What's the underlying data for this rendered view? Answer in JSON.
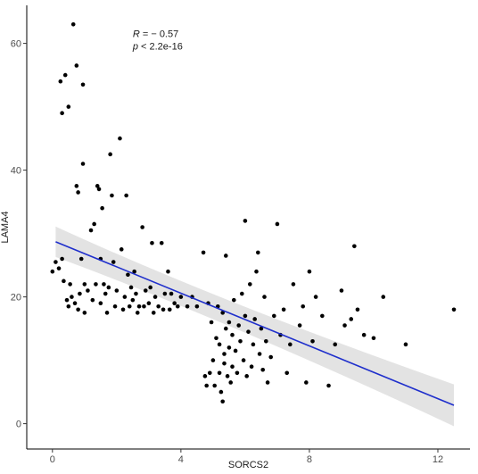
{
  "chart_data": {
    "type": "scatter",
    "xlabel": "SORCS2",
    "ylabel": "LAMA4",
    "xlim": [
      -0.8,
      13.0
    ],
    "ylim": [
      -4.0,
      66.0
    ],
    "x_ticks": [
      0,
      4,
      8,
      12
    ],
    "y_ticks": [
      0,
      20,
      40,
      60
    ],
    "x_tick_labels": [
      "0",
      "4",
      "8",
      "12"
    ],
    "y_tick_labels": [
      "0",
      "20",
      "40",
      "60"
    ],
    "grid": false,
    "annotation": {
      "r_symbol": "R",
      "r_value": " = − 0.57",
      "p_symbol": "p",
      "p_value": " < 2.2e-16",
      "x": 2.5,
      "y_r": 61.0,
      "y_p": 59.0
    },
    "colors": {
      "points": "#000000",
      "fit_line": "#1f2fcc",
      "ci_band": "#d9d9d9"
    },
    "fit": {
      "x": [
        0.1,
        12.5
      ],
      "y": [
        28.7,
        2.9
      ],
      "ci_lower": [
        26.3,
        -0.4
      ],
      "ci_upper": [
        31.1,
        6.2
      ],
      "ci_mid": {
        "x": 5.3,
        "lower": 16.6,
        "upper": 19.0
      }
    },
    "points": [
      [
        0.0,
        24.0
      ],
      [
        0.1,
        25.5
      ],
      [
        0.2,
        24.5
      ],
      [
        0.25,
        54.0
      ],
      [
        0.3,
        26.0
      ],
      [
        0.3,
        49.0
      ],
      [
        0.35,
        22.5
      ],
      [
        0.4,
        55.0
      ],
      [
        0.45,
        19.5
      ],
      [
        0.5,
        50.0
      ],
      [
        0.5,
        18.5
      ],
      [
        0.55,
        22.0
      ],
      [
        0.6,
        20.0
      ],
      [
        0.65,
        63.0
      ],
      [
        0.7,
        19.0
      ],
      [
        0.75,
        56.5
      ],
      [
        0.75,
        37.5
      ],
      [
        0.8,
        36.5
      ],
      [
        0.8,
        18.0
      ],
      [
        0.85,
        20.5
      ],
      [
        0.9,
        26.0
      ],
      [
        0.95,
        41.0
      ],
      [
        0.95,
        53.5
      ],
      [
        1.0,
        22.0
      ],
      [
        1.0,
        17.5
      ],
      [
        1.1,
        21.0
      ],
      [
        1.2,
        30.5
      ],
      [
        1.25,
        19.5
      ],
      [
        1.3,
        31.5
      ],
      [
        1.35,
        22.0
      ],
      [
        1.4,
        37.5
      ],
      [
        1.45,
        37.0
      ],
      [
        1.5,
        26.0
      ],
      [
        1.5,
        19.0
      ],
      [
        1.55,
        34.0
      ],
      [
        1.6,
        22.0
      ],
      [
        1.65,
        20.5
      ],
      [
        1.7,
        17.5
      ],
      [
        1.75,
        21.5
      ],
      [
        1.8,
        42.5
      ],
      [
        1.85,
        36.0
      ],
      [
        1.9,
        25.5
      ],
      [
        1.95,
        18.5
      ],
      [
        2.0,
        21.0
      ],
      [
        2.1,
        45.0
      ],
      [
        2.15,
        27.5
      ],
      [
        2.2,
        18.0
      ],
      [
        2.25,
        20.0
      ],
      [
        2.3,
        36.0
      ],
      [
        2.35,
        23.5
      ],
      [
        2.4,
        18.5
      ],
      [
        2.45,
        21.5
      ],
      [
        2.5,
        19.5
      ],
      [
        2.55,
        24.0
      ],
      [
        2.6,
        20.5
      ],
      [
        2.65,
        17.5
      ],
      [
        2.7,
        18.5
      ],
      [
        2.8,
        31.0
      ],
      [
        2.85,
        18.5
      ],
      [
        2.9,
        21.0
      ],
      [
        3.0,
        19.0
      ],
      [
        3.05,
        21.5
      ],
      [
        3.1,
        28.5
      ],
      [
        3.15,
        17.5
      ],
      [
        3.2,
        20.0
      ],
      [
        3.3,
        18.5
      ],
      [
        3.4,
        28.5
      ],
      [
        3.45,
        18.0
      ],
      [
        3.5,
        20.5
      ],
      [
        3.6,
        24.0
      ],
      [
        3.65,
        18.0
      ],
      [
        3.7,
        20.5
      ],
      [
        3.8,
        19.0
      ],
      [
        3.9,
        18.5
      ],
      [
        4.0,
        20.0
      ],
      [
        4.2,
        18.5
      ],
      [
        4.35,
        20.0
      ],
      [
        4.5,
        18.5
      ],
      [
        4.7,
        27.0
      ],
      [
        4.75,
        7.5
      ],
      [
        4.8,
        6.0
      ],
      [
        4.85,
        19.0
      ],
      [
        4.9,
        8.0
      ],
      [
        4.95,
        16.0
      ],
      [
        5.0,
        10.0
      ],
      [
        5.05,
        6.0
      ],
      [
        5.1,
        13.5
      ],
      [
        5.15,
        18.5
      ],
      [
        5.2,
        8.0
      ],
      [
        5.2,
        12.5
      ],
      [
        5.25,
        5.0
      ],
      [
        5.3,
        3.5
      ],
      [
        5.3,
        17.5
      ],
      [
        5.35,
        11.0
      ],
      [
        5.35,
        9.5
      ],
      [
        5.4,
        26.5
      ],
      [
        5.4,
        15.0
      ],
      [
        5.45,
        7.5
      ],
      [
        5.5,
        12.0
      ],
      [
        5.5,
        16.0
      ],
      [
        5.55,
        6.5
      ],
      [
        5.6,
        14.0
      ],
      [
        5.6,
        9.0
      ],
      [
        5.65,
        19.5
      ],
      [
        5.7,
        11.5
      ],
      [
        5.75,
        8.0
      ],
      [
        5.8,
        15.5
      ],
      [
        5.85,
        13.0
      ],
      [
        5.9,
        20.5
      ],
      [
        5.95,
        10.0
      ],
      [
        6.0,
        32.0
      ],
      [
        6.0,
        17.0
      ],
      [
        6.05,
        7.5
      ],
      [
        6.1,
        14.5
      ],
      [
        6.15,
        22.0
      ],
      [
        6.2,
        9.0
      ],
      [
        6.25,
        12.5
      ],
      [
        6.3,
        16.5
      ],
      [
        6.35,
        24.0
      ],
      [
        6.4,
        27.0
      ],
      [
        6.45,
        11.0
      ],
      [
        6.5,
        15.0
      ],
      [
        6.55,
        8.5
      ],
      [
        6.6,
        20.0
      ],
      [
        6.65,
        13.0
      ],
      [
        6.7,
        6.5
      ],
      [
        6.8,
        10.5
      ],
      [
        6.9,
        17.0
      ],
      [
        7.0,
        31.5
      ],
      [
        7.1,
        14.0
      ],
      [
        7.2,
        18.0
      ],
      [
        7.3,
        8.0
      ],
      [
        7.4,
        12.5
      ],
      [
        7.5,
        22.0
      ],
      [
        7.7,
        15.5
      ],
      [
        7.8,
        18.5
      ],
      [
        7.9,
        6.5
      ],
      [
        8.0,
        24.0
      ],
      [
        8.1,
        13.0
      ],
      [
        8.2,
        20.0
      ],
      [
        8.4,
        17.0
      ],
      [
        8.6,
        6.0
      ],
      [
        8.8,
        12.5
      ],
      [
        9.0,
        21.0
      ],
      [
        9.1,
        15.5
      ],
      [
        9.3,
        16.5
      ],
      [
        9.4,
        28.0
      ],
      [
        9.5,
        18.0
      ],
      [
        9.7,
        14.0
      ],
      [
        10.0,
        13.5
      ],
      [
        10.3,
        20.0
      ],
      [
        11.0,
        12.5
      ],
      [
        12.5,
        18.0
      ]
    ]
  }
}
